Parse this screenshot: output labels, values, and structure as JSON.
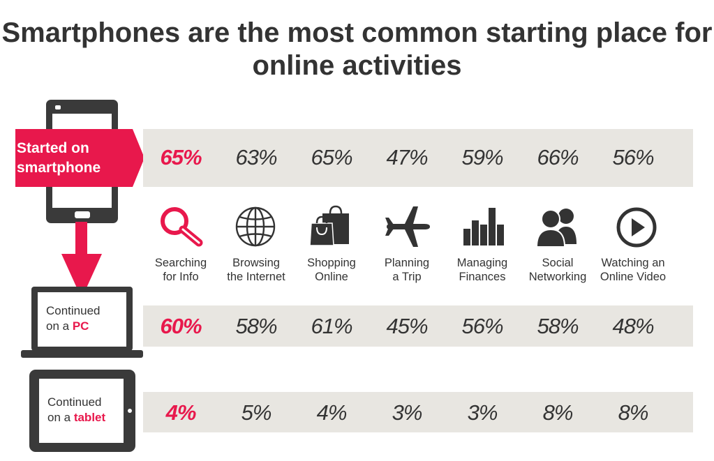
{
  "title": "Smartphones are the most common starting place for online activities",
  "colors": {
    "accent": "#e8184c",
    "band": "#e8e6e1",
    "text": "#333333",
    "device": "#3a3a3a"
  },
  "rows": {
    "smartphone": {
      "label": "Started on\nsmartphone",
      "icon": "smartphone-icon"
    },
    "pc": {
      "label_prefix": "Continued\non a ",
      "label_accent": "PC",
      "icon": "laptop-icon"
    },
    "tablet": {
      "label_prefix": "Continued\non a ",
      "label_accent": "tablet",
      "icon": "tablet-icon"
    }
  },
  "categories": [
    {
      "label": "Searching\nfor Info",
      "icon": "magnifier-icon"
    },
    {
      "label": "Browsing\nthe Internet",
      "icon": "globe-icon"
    },
    {
      "label": "Shopping\nOnline",
      "icon": "shopping-bag-icon"
    },
    {
      "label": "Planning\na Trip",
      "icon": "airplane-icon"
    },
    {
      "label": "Managing\nFinances",
      "icon": "bar-chart-icon"
    },
    {
      "label": "Social\nNetworking",
      "icon": "people-icon"
    },
    {
      "label": "Watching an\nOnline Video",
      "icon": "play-button-icon"
    }
  ],
  "chart_data": {
    "type": "table",
    "title": "Smartphones are the most common starting place for online activities",
    "categories": [
      "Searching for Info",
      "Browsing the Internet",
      "Shopping Online",
      "Planning a Trip",
      "Managing Finances",
      "Social Networking",
      "Watching an Online Video"
    ],
    "series": [
      {
        "name": "Started on smartphone",
        "values": [
          "65%",
          "63%",
          "65%",
          "47%",
          "59%",
          "66%",
          "56%"
        ]
      },
      {
        "name": "Continued on a PC",
        "values": [
          "60%",
          "58%",
          "61%",
          "45%",
          "56%",
          "58%",
          "48%"
        ]
      },
      {
        "name": "Continued on a tablet",
        "values": [
          "4%",
          "5%",
          "4%",
          "3%",
          "3%",
          "8%",
          "8%"
        ]
      }
    ],
    "highlight_column": 0
  }
}
